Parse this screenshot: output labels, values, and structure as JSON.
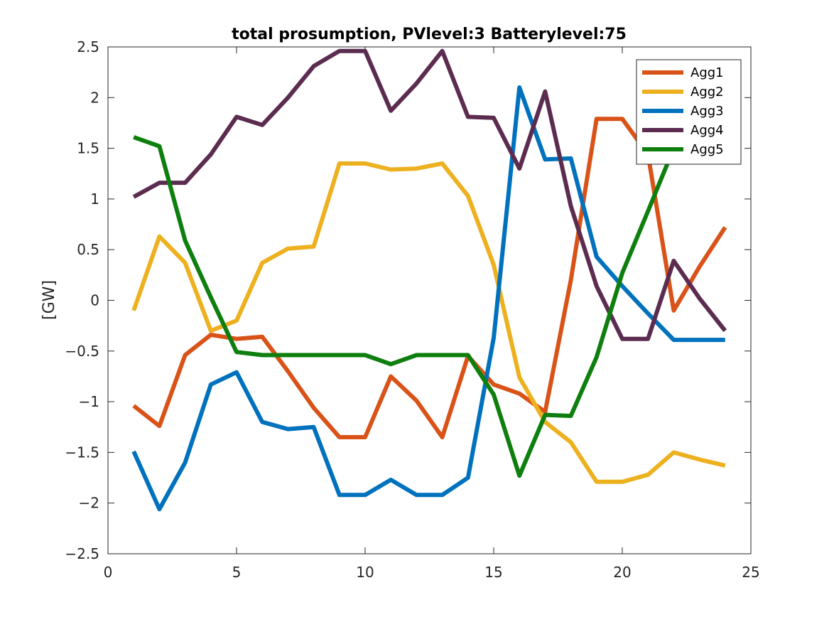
{
  "chart_data": {
    "type": "line",
    "title": "total prosumption, PVlevel:3 Batterylevel:75",
    "xlabel": "",
    "ylabel": "[GW]",
    "xlim": [
      0,
      25
    ],
    "ylim": [
      -2.5,
      2.5
    ],
    "xticks": [
      0,
      5,
      10,
      15,
      20,
      25
    ],
    "xtick_labels": [
      "0",
      "5",
      "10",
      "15",
      "20",
      "25"
    ],
    "yticks": [
      -2.5,
      -2,
      -1.5,
      -1,
      -0.5,
      0,
      0.5,
      1,
      1.5,
      2,
      2.5
    ],
    "ytick_labels": [
      "−2.5",
      "−2",
      "−1.5",
      "−1",
      "−0.5",
      "0",
      "0.5",
      "1",
      "1.5",
      "2",
      "2.5"
    ],
    "grid": false,
    "legend_position": "top-right",
    "x": [
      1,
      2,
      3,
      4,
      5,
      6,
      7,
      8,
      9,
      10,
      11,
      12,
      13,
      14,
      15,
      16,
      17,
      18,
      19,
      20,
      21,
      22,
      23,
      24
    ],
    "series": [
      {
        "name": "Agg1",
        "color": "#D95319",
        "values": [
          -1.04,
          -1.24,
          -0.54,
          -0.34,
          -0.38,
          -0.36,
          -0.7,
          -1.06,
          -1.35,
          -1.35,
          -0.75,
          -0.99,
          -1.35,
          -0.55,
          -0.83,
          -0.92,
          -1.1,
          0.2,
          1.79,
          1.79,
          1.44,
          -0.1,
          0.33,
          0.72
        ]
      },
      {
        "name": "Agg2",
        "color": "#EDB120",
        "values": [
          -0.1,
          0.63,
          0.37,
          -0.3,
          -0.2,
          0.37,
          0.51,
          0.53,
          1.35,
          1.35,
          1.29,
          1.3,
          1.35,
          1.03,
          0.35,
          -0.76,
          -1.2,
          -1.4,
          -1.79,
          -1.79,
          -1.72,
          -1.5,
          -1.57,
          -1.63
        ]
      },
      {
        "name": "Agg3",
        "color": "#0072BD",
        "values": [
          -1.49,
          -2.06,
          -1.6,
          -0.83,
          -0.71,
          -1.2,
          -1.27,
          -1.25,
          -1.92,
          -1.92,
          -1.77,
          -1.92,
          -1.92,
          -1.75,
          -0.37,
          2.1,
          1.39,
          1.4,
          0.43,
          0.14,
          -0.13,
          -0.39,
          -0.39,
          -0.39
        ]
      },
      {
        "name": "Agg4",
        "color": "#5B2C4F",
        "values": [
          1.02,
          1.16,
          1.16,
          1.44,
          1.81,
          1.73,
          2.0,
          2.31,
          2.46,
          2.46,
          1.87,
          2.14,
          2.46,
          1.81,
          1.8,
          1.3,
          2.06,
          0.93,
          0.14,
          -0.38,
          -0.38,
          0.39,
          0.02,
          -0.3
        ]
      },
      {
        "name": "Agg5",
        "color": "#0E7F0E",
        "values": [
          1.61,
          1.52,
          0.59,
          0.03,
          -0.51,
          -0.54,
          -0.54,
          -0.54,
          -0.54,
          -0.54,
          -0.63,
          -0.54,
          -0.54,
          -0.54,
          -0.93,
          -1.73,
          -1.13,
          -1.14,
          -0.56,
          0.27,
          0.88,
          1.5,
          1.5,
          1.5
        ]
      }
    ]
  }
}
